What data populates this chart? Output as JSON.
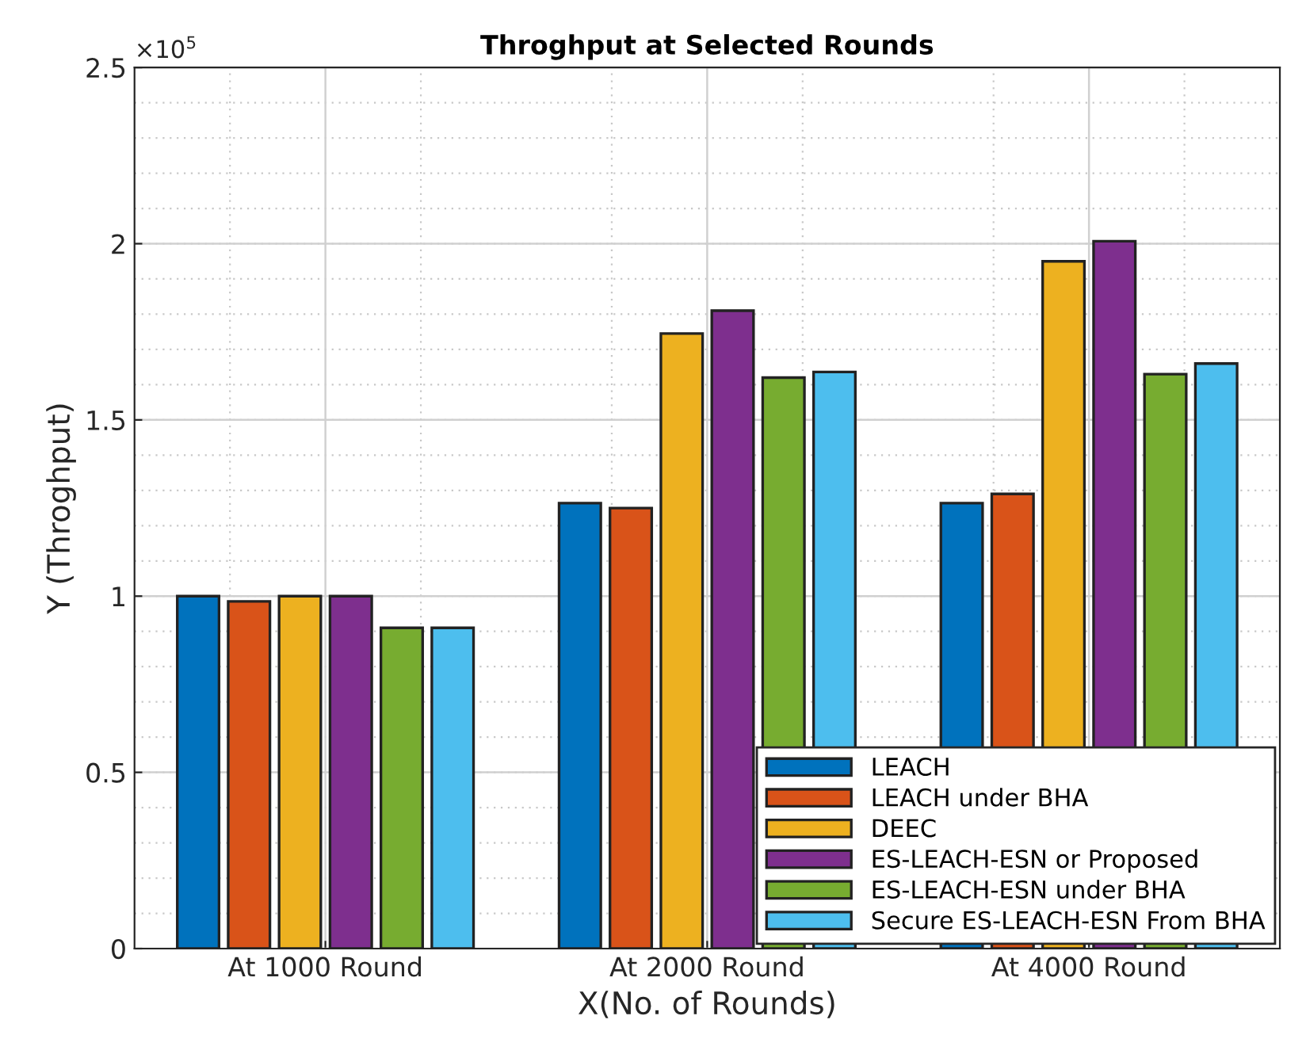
{
  "chart_data": {
    "type": "bar",
    "title": "Throghput at Selected Rounds",
    "xlabel": "X(No. of Rounds)",
    "ylabel": "Y (Throghput)",
    "categories": [
      "At 1000 Round",
      "At 2000 Round",
      "At 4000 Round"
    ],
    "series": [
      {
        "name": "LEACH",
        "color": "#0072bd",
        "values": [
          1.0,
          1.264,
          1.264
        ]
      },
      {
        "name": "LEACH under BHA",
        "color": "#d95319",
        "values": [
          0.985,
          1.25,
          1.29
        ]
      },
      {
        "name": "DEEC",
        "color": "#edb120",
        "values": [
          1.0,
          1.745,
          1.95
        ]
      },
      {
        "name": "ES-LEACH-ESN or Proposed",
        "color": "#7e2f8e",
        "values": [
          1.0,
          1.81,
          2.007
        ]
      },
      {
        "name": "ES-LEACH-ESN under BHA",
        "color": "#77ac30",
        "values": [
          0.91,
          1.62,
          1.63
        ]
      },
      {
        "name": "Secure ES-LEACH-ESN From BHA",
        "color": "#4dbeee",
        "values": [
          0.91,
          1.636,
          1.66
        ]
      }
    ],
    "ylim": [
      0,
      2.5
    ],
    "yticks": [
      0,
      0.5,
      1,
      1.5,
      2,
      2.5
    ],
    "annotations": [
      "×10$^{5}$"
    ],
    "grid": true,
    "legend": "bottom right"
  }
}
